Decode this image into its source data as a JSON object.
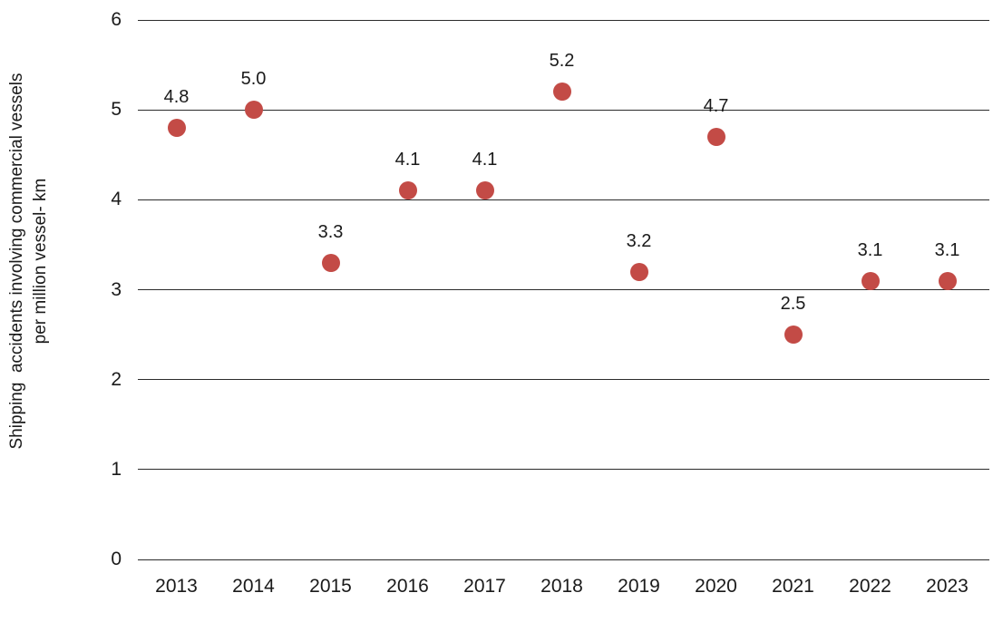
{
  "chart_data": {
    "type": "scatter",
    "title": "",
    "xlabel": "",
    "ylabel": "Shipping  accidents involving commercial vessels per million vessel- km",
    "ylabel_lines": [
      "Shipping  accidents involving commercial vessels",
      "per million vessel- km"
    ],
    "categories": [
      "2013",
      "2014",
      "2015",
      "2016",
      "2017",
      "2018",
      "2019",
      "2020",
      "2021",
      "2022",
      "2023"
    ],
    "values": [
      4.8,
      5.0,
      3.3,
      4.1,
      4.1,
      5.2,
      3.2,
      4.7,
      2.5,
      3.1,
      3.1
    ],
    "point_labels": [
      "4.8",
      "5.0",
      "3.3",
      "4.1",
      "4.1",
      "5.2",
      "3.2",
      "4.7",
      "2.5",
      "3.1",
      "3.1"
    ],
    "ylim": [
      0,
      6
    ],
    "yticks": [
      0,
      1,
      2,
      3,
      4,
      5,
      6
    ],
    "ytick_labels": [
      "0",
      "1",
      "2",
      "3",
      "4",
      "5",
      "6"
    ],
    "grid": "horizontal",
    "legend": "none",
    "colors": {
      "marker": "#C34B46",
      "gridline": "#2b2b2b",
      "text": "#1a1a1a",
      "background": "#ffffff"
    }
  }
}
